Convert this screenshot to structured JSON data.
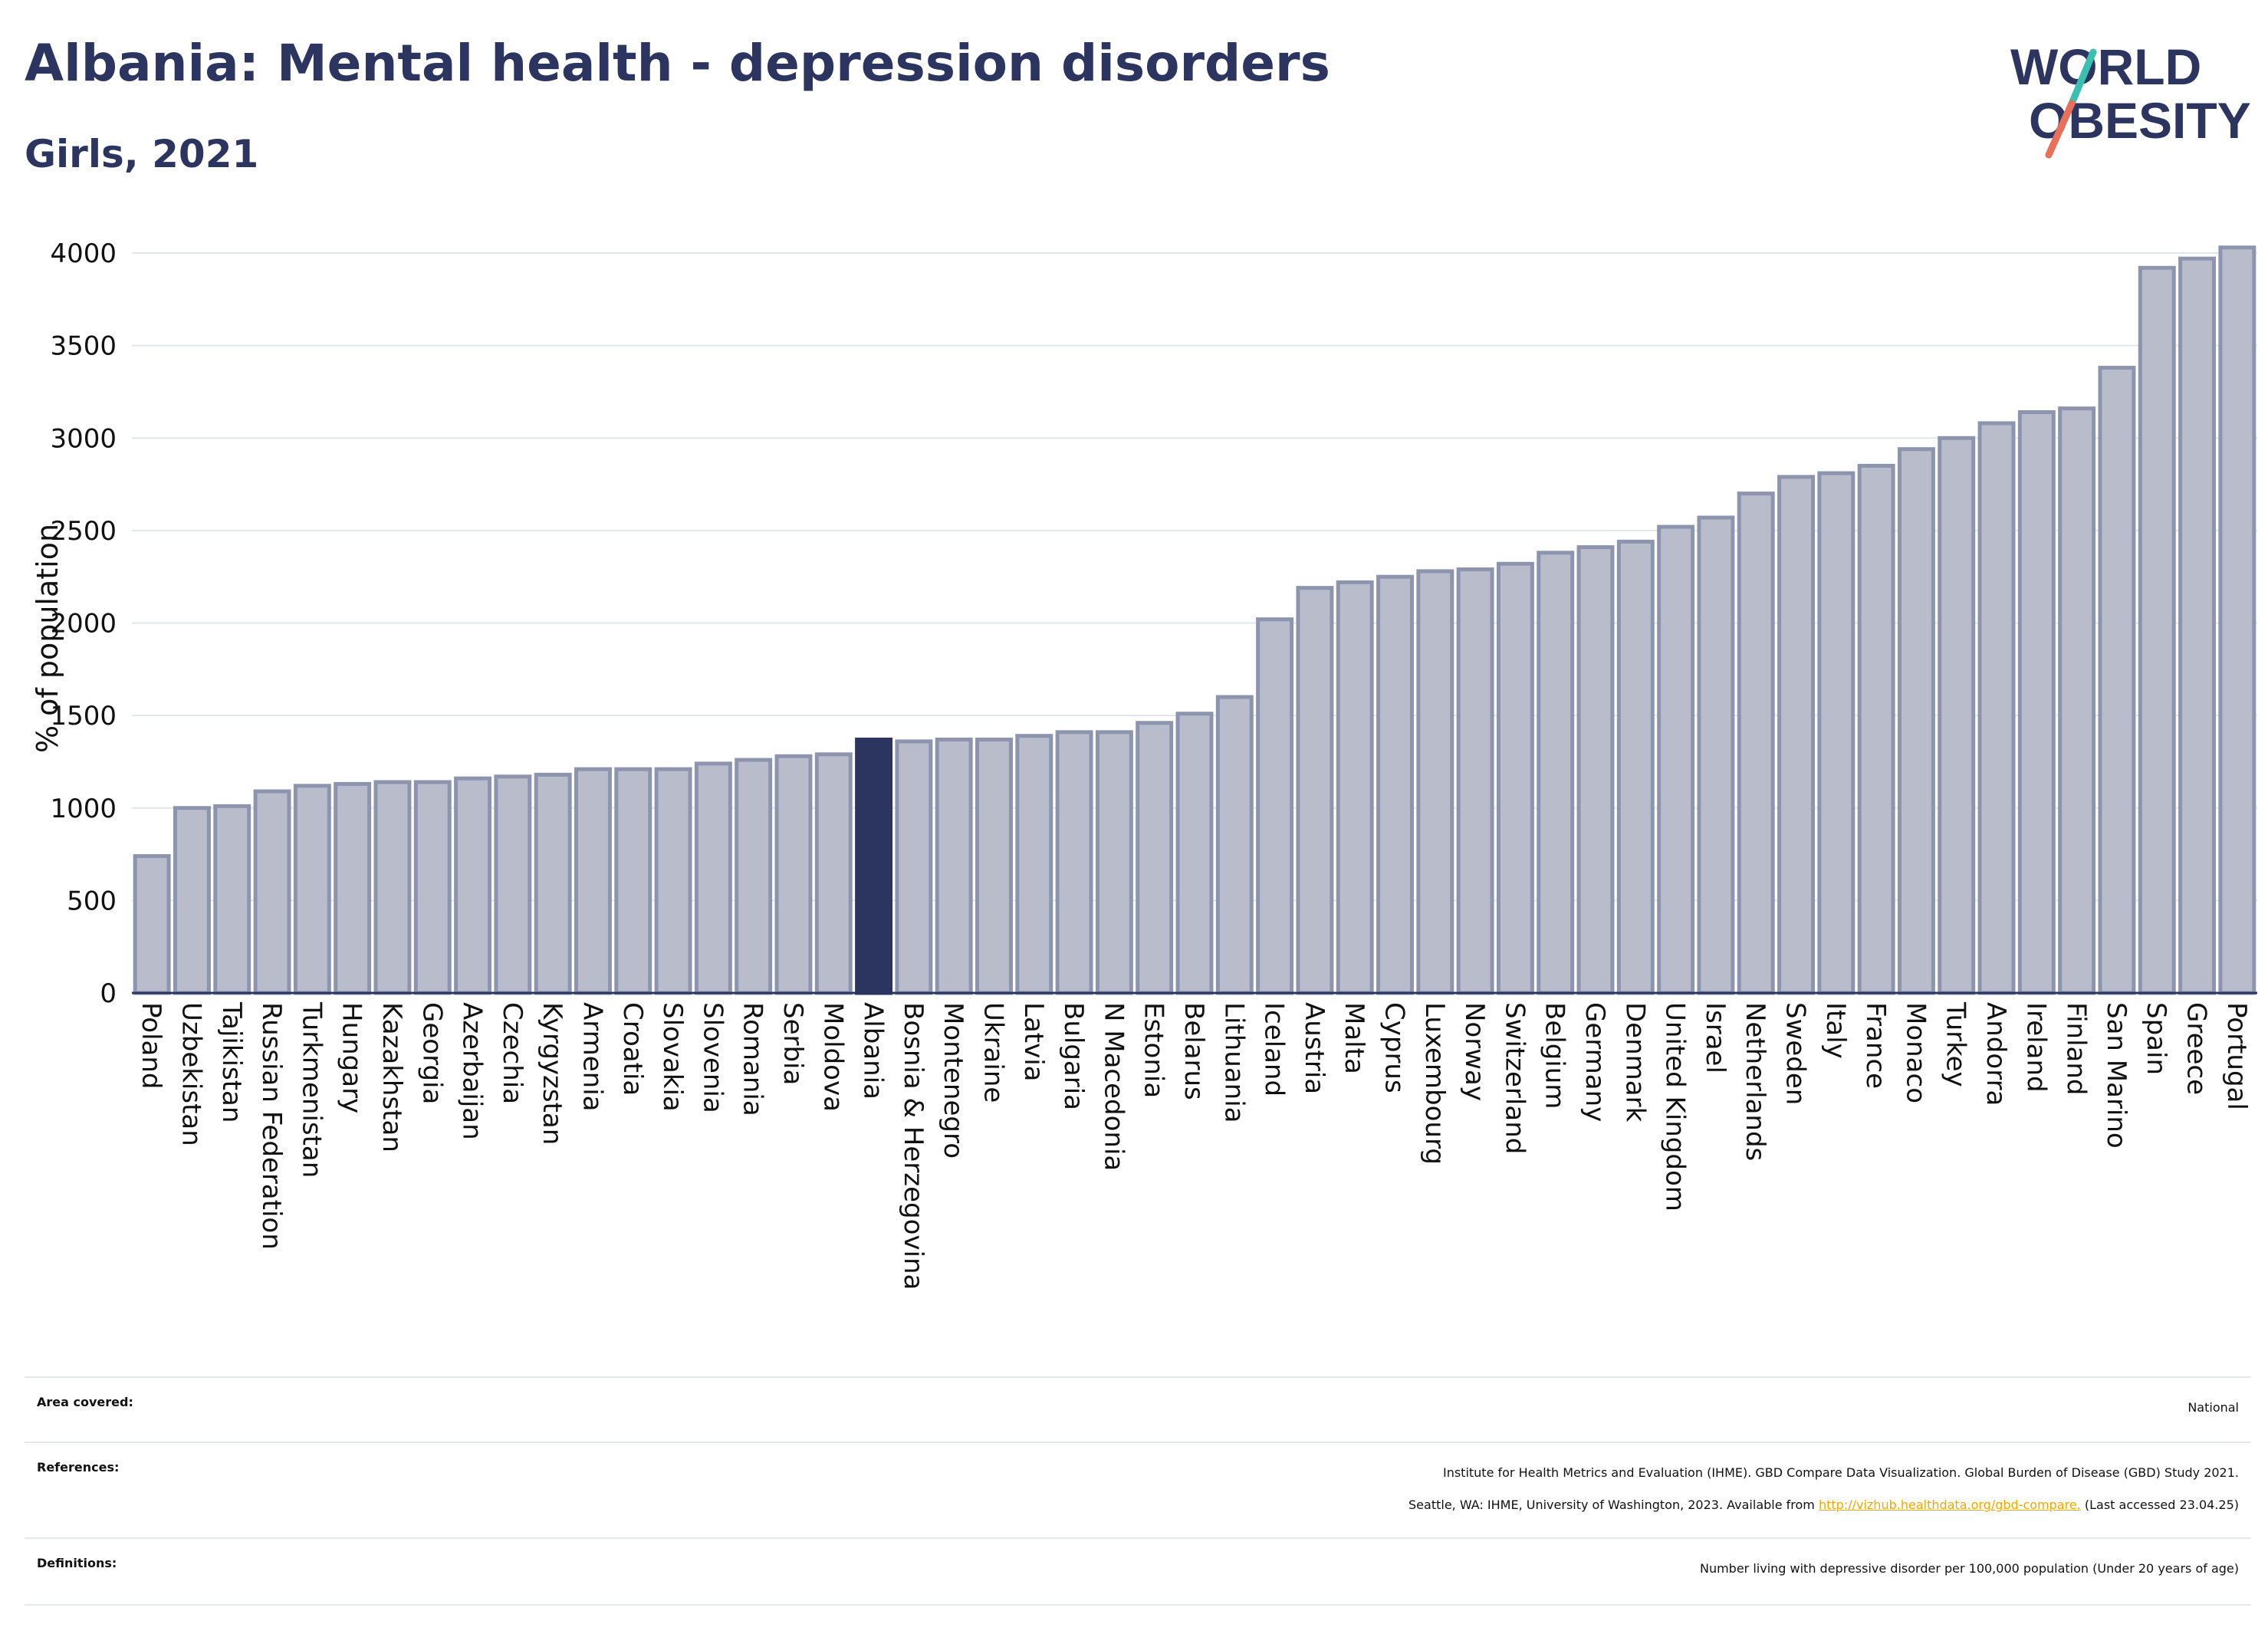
{
  "header": {
    "title": "Albania: Mental health - depression disorders",
    "subtitle": "Girls, 2021"
  },
  "logo": {
    "line1": "WORLD",
    "line2": "OBESITY",
    "text_color": "#2c3560",
    "slash_colors": [
      "#3bbfb0",
      "#e8705a"
    ]
  },
  "chart_data": {
    "type": "bar",
    "ylabel": "% of population",
    "ylim": [
      0,
      4000
    ],
    "yticks": [
      0,
      500,
      1000,
      1500,
      2000,
      2500,
      3000,
      3500,
      4000
    ],
    "grid": true,
    "highlight": "Albania",
    "colors": {
      "bar": "#b8bccb",
      "bar_edge": "#8d94ae",
      "highlight": "#2c3560"
    },
    "categories": [
      "Poland",
      "Uzbekistan",
      "Tajikistan",
      "Russian Federation",
      "Turkmenistan",
      "Hungary",
      "Kazakhstan",
      "Georgia",
      "Azerbaijan",
      "Czechia",
      "Kyrgyzstan",
      "Armenia",
      "Croatia",
      "Slovakia",
      "Slovenia",
      "Romania",
      "Serbia",
      "Moldova",
      "Albania",
      "Bosnia & Herzegovina",
      "Montenegro",
      "Ukraine",
      "Latvia",
      "Bulgaria",
      "N Macedonia",
      "Estonia",
      "Belarus",
      "Lithuania",
      "Iceland",
      "Austria",
      "Malta",
      "Cyprus",
      "Luxembourg",
      "Norway",
      "Switzerland",
      "Belgium",
      "Germany",
      "Denmark",
      "United Kingdom",
      "Israel",
      "Netherlands",
      "Sweden",
      "Italy",
      "France",
      "Monaco",
      "Turkey",
      "Andorra",
      "Ireland",
      "Finland",
      "San Marino",
      "Spain",
      "Greece",
      "Portugal"
    ],
    "values": [
      740,
      1000,
      1010,
      1090,
      1120,
      1130,
      1140,
      1140,
      1160,
      1170,
      1180,
      1210,
      1210,
      1210,
      1240,
      1260,
      1280,
      1290,
      1370,
      1360,
      1370,
      1370,
      1390,
      1410,
      1410,
      1460,
      1510,
      1600,
      2020,
      2190,
      2220,
      2250,
      2280,
      2290,
      2320,
      2380,
      2410,
      2440,
      2520,
      2570,
      2700,
      2790,
      2810,
      2850,
      2940,
      3000,
      3080,
      3140,
      3160,
      3380,
      3920,
      3970,
      4030
    ]
  },
  "footer": {
    "area_label": "Area covered:",
    "area_value": "National",
    "references_label": "References:",
    "references_line1": "Institute for Health Metrics and Evaluation (IHME). GBD Compare Data Visualization. Global Burden of Disease (GBD) Study 2021.",
    "references_line2_pre": "Seattle, WA: IHME, University of Washington, 2023. Available from ",
    "references_link": "http://vizhub.healthdata.org/gbd-compare.",
    "references_line2_post": " (Last accessed 23.04.25)",
    "definitions_label": "Definitions:",
    "definitions_value": "Number living with depressive disorder per 100,000 population (Under 20 years of age)"
  }
}
